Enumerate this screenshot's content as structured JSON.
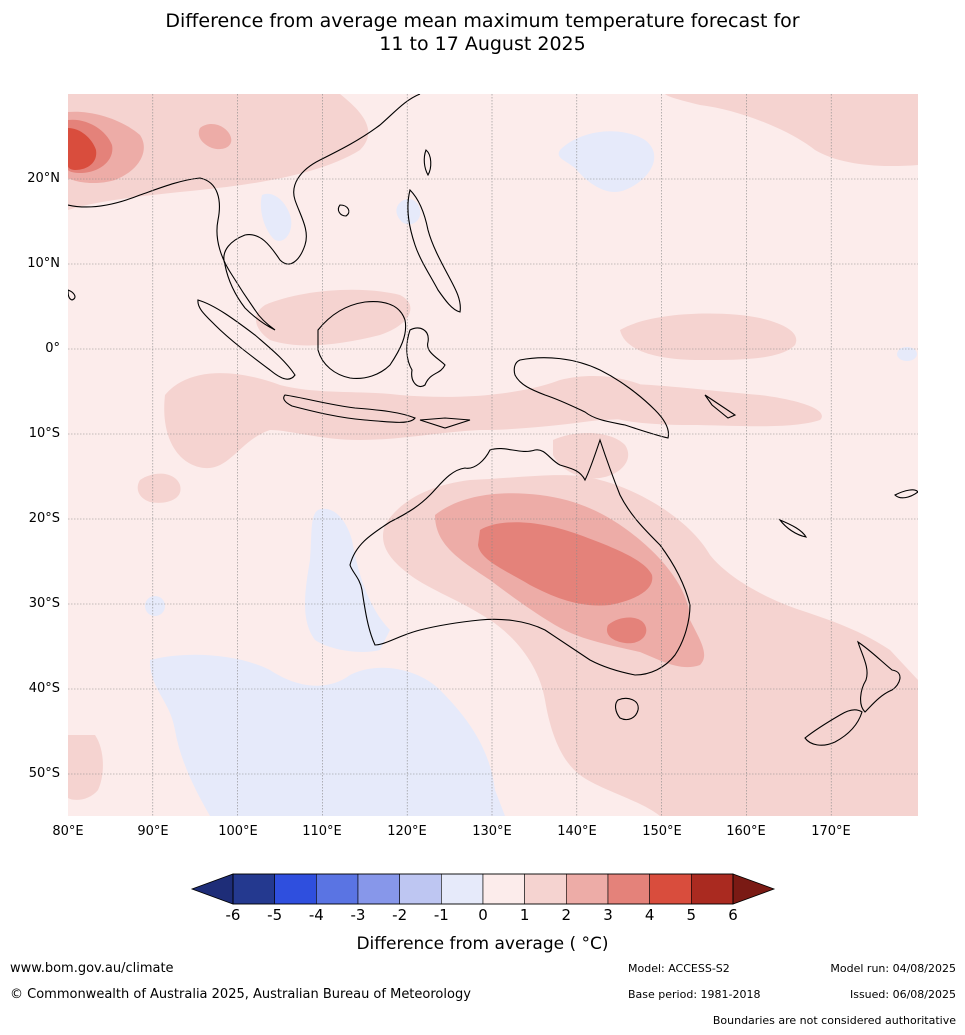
{
  "title_line1": "Difference from average mean maximum temperature forecast for",
  "title_line2": "11 to 17 August 2025",
  "map": {
    "lon_range": [
      80,
      180
    ],
    "lat_range": [
      -55,
      30
    ],
    "lat_labels": [
      "20°N",
      "10°N",
      "0°",
      "10°S",
      "20°S",
      "30°S",
      "40°S",
      "50°S"
    ],
    "lon_labels": [
      "80°E",
      "90°E",
      "100°E",
      "110°E",
      "120°E",
      "130°E",
      "140°E",
      "150°E",
      "160°E",
      "170°E"
    ]
  },
  "colorbar": {
    "ticks": [
      "-6",
      "-5",
      "-4",
      "-3",
      "-2",
      "-1",
      "0",
      "1",
      "2",
      "3",
      "4",
      "5",
      "6"
    ],
    "colors": [
      "#24398f",
      "#2f4fde",
      "#5a74e3",
      "#8797ea",
      "#bec6f2",
      "#e6eafa",
      "#fceceb",
      "#f5d3d0",
      "#edaca7",
      "#e4827a",
      "#d94d3d",
      "#aa2a20"
    ],
    "extend_low_color": "#1e2d78",
    "extend_high_color": "#7a1a14",
    "label": "Difference from average ( °C)"
  },
  "footer": {
    "website": "www.bom.gov.au/climate",
    "copyright": "© Commonwealth of Australia 2025, Australian Bureau of Meteorology",
    "model": "Model: ACCESS-S2",
    "base_period": "Base period: 1981-2018",
    "model_run": "Model run: 04/08/2025",
    "issued": "Issued: 06/08/2025",
    "disclaimer": "Boundaries are not considered authoritative"
  }
}
